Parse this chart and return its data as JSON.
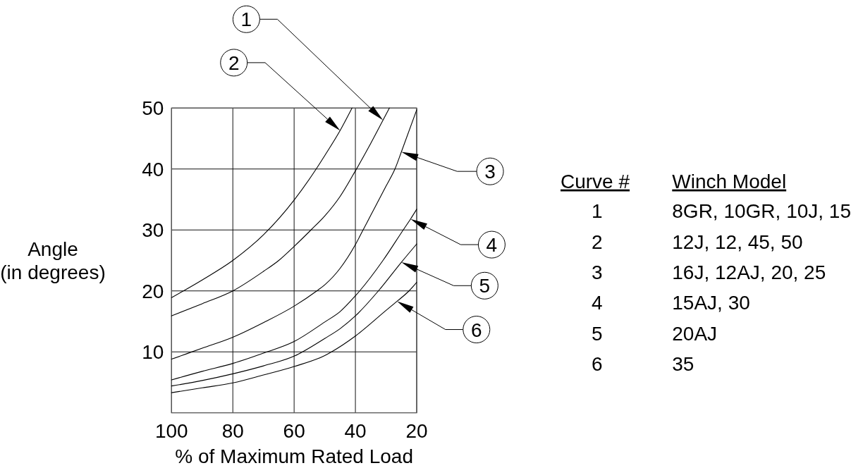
{
  "chart_data": {
    "type": "line",
    "xlabel": "% of Maximum Rated Load",
    "ylabel": "Angle\n(in degrees)",
    "xlim": [
      100,
      20
    ],
    "xticks": [
      100,
      80,
      60,
      40,
      20
    ],
    "ylim": [
      0,
      50
    ],
    "yticks": [
      10,
      20,
      30,
      40,
      50
    ],
    "grid": true,
    "legend": "right",
    "series": [
      {
        "name": "8GR, 10GR, 10J, 15",
        "color": "#000000",
        "x": [
          100,
          90,
          80,
          70,
          65,
          60,
          54.5,
          50,
          45,
          40,
          35,
          31,
          28.9
        ],
        "values": [
          15.9,
          17.9,
          20,
          23.2,
          25,
          27.3,
          30,
          32.3,
          35.5,
          39.7,
          44.2,
          48,
          50
        ]
      },
      {
        "name": "12J, 12, 45, 50",
        "color": "#000000",
        "x": [
          100,
          90,
          80,
          70,
          60,
          52.8,
          50,
          45,
          41.1
        ],
        "values": [
          18.9,
          21.8,
          25,
          29.2,
          34.9,
          40,
          42.2,
          46.3,
          50
        ]
      },
      {
        "name": "16J, 12AJ, 20, 25",
        "color": "#000000",
        "x": [
          100,
          90,
          80,
          70,
          60,
          52.6,
          50,
          45,
          40,
          37.5,
          35,
          30,
          27.1,
          25,
          20
        ],
        "values": [
          8.8,
          10.6,
          12.4,
          14.8,
          17.5,
          20,
          21,
          23.7,
          27.6,
          30,
          32.4,
          37.2,
          40,
          42.8,
          49.7
        ]
      },
      {
        "name": "15AJ, 30",
        "color": "#000000",
        "x": [
          100,
          90,
          80,
          70,
          60,
          50,
          45,
          40,
          38.6,
          31,
          24.4,
          22,
          20
        ],
        "values": [
          5.4,
          6.8,
          8.1,
          9.8,
          11.7,
          14.9,
          16.6,
          19.2,
          20,
          25,
          30,
          31.8,
          33.4
        ]
      },
      {
        "name": "20AJ",
        "color": "#000000",
        "x": [
          100,
          90,
          80,
          70,
          60,
          50,
          45,
          40,
          32.5,
          25,
          20
        ],
        "values": [
          4.4,
          5.3,
          6.4,
          7.7,
          9.3,
          12.2,
          13.8,
          15.9,
          20,
          24.7,
          27.7
        ]
      },
      {
        "name": "35",
        "color": "#000000",
        "x": [
          100,
          90,
          80,
          70,
          60,
          50,
          47.8,
          40,
          30,
          26.4,
          22.5,
          20
        ],
        "values": [
          3.3,
          4.1,
          4.9,
          6.2,
          7.6,
          9.4,
          10,
          12.6,
          16.8,
          18.3,
          20,
          21.4
        ]
      }
    ],
    "annotations": [
      "Curve #",
      "Winch Model",
      "1",
      "2",
      "3",
      "4",
      "5",
      "6"
    ]
  }
}
